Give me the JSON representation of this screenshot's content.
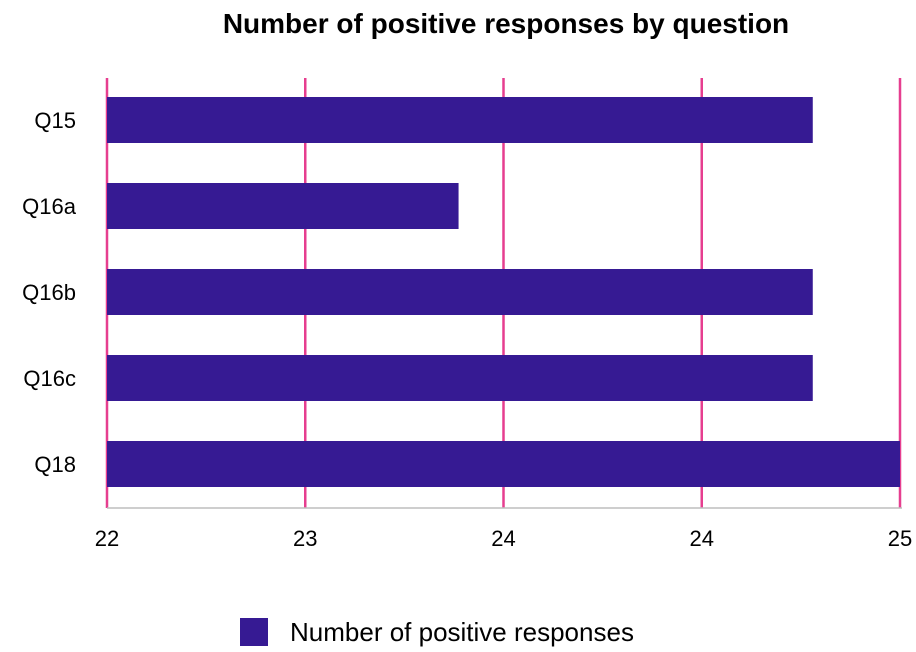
{
  "colors": {
    "bar": "#361A93",
    "grid": "#E63E8F",
    "axis": "#BDBDBD"
  },
  "chart_data": {
    "type": "bar",
    "orientation": "horizontal",
    "title": "Number of positive responses by question",
    "categories": [
      "Q15",
      "Q16a",
      "Q16b",
      "Q16c",
      "Q18"
    ],
    "series": [
      {
        "name": "Number of positive responses",
        "values": [
          24.67,
          23.33,
          24.67,
          24.67,
          25
        ]
      }
    ],
    "xlim": [
      22,
      25
    ],
    "xticks": [
      22,
      22.75,
      23.5,
      24.25,
      25
    ],
    "xtick_labels": [
      "22",
      "23",
      "24",
      "24",
      "25"
    ],
    "grid": true,
    "legend_position": "bottom"
  }
}
